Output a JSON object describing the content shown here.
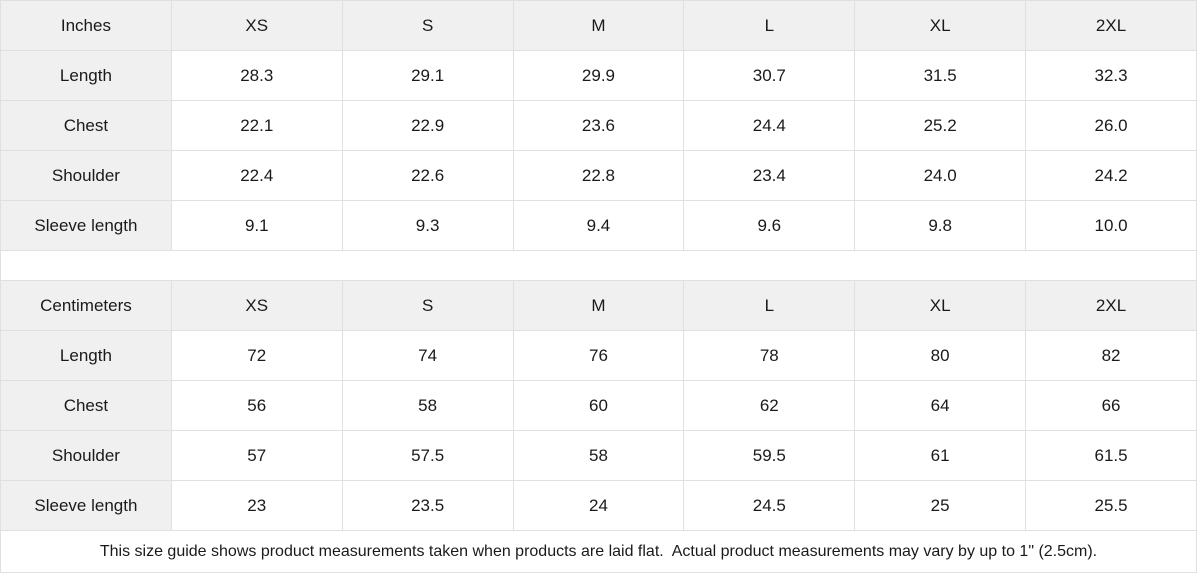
{
  "colors": {
    "header_background": "#f0f0f0",
    "border": "#e0e0e0",
    "text": "#1a1a1a",
    "cell_background": "#ffffff"
  },
  "tables": [
    {
      "unit_label": "Inches",
      "sizes": [
        "XS",
        "S",
        "M",
        "L",
        "XL",
        "2XL"
      ],
      "rows": [
        {
          "label": "Length",
          "values": [
            "28.3",
            "29.1",
            "29.9",
            "30.7",
            "31.5",
            "32.3"
          ]
        },
        {
          "label": "Chest",
          "values": [
            "22.1",
            "22.9",
            "23.6",
            "24.4",
            "25.2",
            "26.0"
          ]
        },
        {
          "label": "Shoulder",
          "values": [
            "22.4",
            "22.6",
            "22.8",
            "23.4",
            "24.0",
            "24.2"
          ]
        },
        {
          "label": "Sleeve length",
          "values": [
            "9.1",
            "9.3",
            "9.4",
            "9.6",
            "9.8",
            "10.0"
          ]
        }
      ]
    },
    {
      "unit_label": "Centimeters",
      "sizes": [
        "XS",
        "S",
        "M",
        "L",
        "XL",
        "2XL"
      ],
      "rows": [
        {
          "label": "Length",
          "values": [
            "72",
            "74",
            "76",
            "78",
            "80",
            "82"
          ]
        },
        {
          "label": "Chest",
          "values": [
            "56",
            "58",
            "60",
            "62",
            "64",
            "66"
          ]
        },
        {
          "label": "Shoulder",
          "values": [
            "57",
            "57.5",
            "58",
            "59.5",
            "61",
            "61.5"
          ]
        },
        {
          "label": "Sleeve length",
          "values": [
            "23",
            "23.5",
            "24",
            "24.5",
            "25",
            "25.5"
          ]
        }
      ]
    }
  ],
  "footer": {
    "note": "This size guide shows product measurements taken when products are laid flat.  Actual product measurements may vary by up to 1\" (2.5cm)."
  },
  "chart_data": [
    {
      "type": "table",
      "title": "Size chart (Inches)",
      "columns": [
        "Inches",
        "XS",
        "S",
        "M",
        "L",
        "XL",
        "2XL"
      ],
      "rows": [
        [
          "Length",
          28.3,
          29.1,
          29.9,
          30.7,
          31.5,
          32.3
        ],
        [
          "Chest",
          22.1,
          22.9,
          23.6,
          24.4,
          25.2,
          26.0
        ],
        [
          "Shoulder",
          22.4,
          22.6,
          22.8,
          23.4,
          24.0,
          24.2
        ],
        [
          "Sleeve length",
          9.1,
          9.3,
          9.4,
          9.6,
          9.8,
          10.0
        ]
      ]
    },
    {
      "type": "table",
      "title": "Size chart (Centimeters)",
      "columns": [
        "Centimeters",
        "XS",
        "S",
        "M",
        "L",
        "XL",
        "2XL"
      ],
      "rows": [
        [
          "Length",
          72,
          74,
          76,
          78,
          80,
          82
        ],
        [
          "Chest",
          56,
          58,
          60,
          62,
          64,
          66
        ],
        [
          "Shoulder",
          57,
          57.5,
          58,
          59.5,
          61,
          61.5
        ],
        [
          "Sleeve length",
          23,
          23.5,
          24,
          24.5,
          25,
          25.5
        ]
      ]
    }
  ]
}
